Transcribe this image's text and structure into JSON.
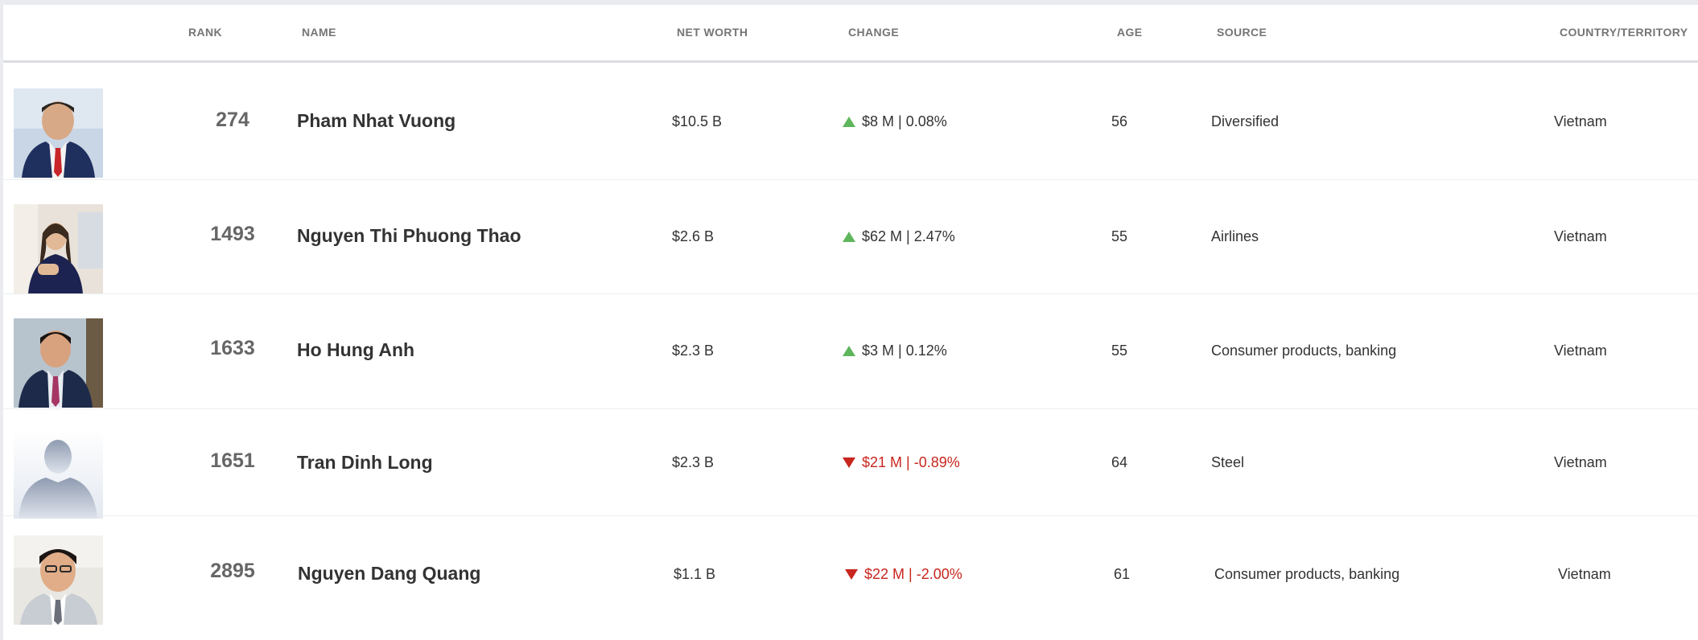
{
  "columns": {
    "rank": "RANK",
    "name": "NAME",
    "net_worth": "NET WORTH",
    "change": "CHANGE",
    "age": "AGE",
    "source": "SOURCE",
    "country": "COUNTRY/TERRITORY"
  },
  "rows": [
    {
      "rank": "274",
      "name": "Pham Nhat Vuong",
      "net_worth": "$10.5 B",
      "change": "$8 M | 0.08%",
      "direction": "up",
      "age": "56",
      "source": "Diversified",
      "country": "Vietnam"
    },
    {
      "rank": "1493",
      "name": "Nguyen Thi Phuong Thao",
      "net_worth": "$2.6 B",
      "change": "$62 M | 2.47%",
      "direction": "up",
      "age": "55",
      "source": "Airlines",
      "country": "Vietnam"
    },
    {
      "rank": "1633",
      "name": "Ho Hung Anh",
      "net_worth": "$2.3 B",
      "change": "$3 M | 0.12%",
      "direction": "up",
      "age": "55",
      "source": "Consumer products, banking",
      "country": "Vietnam"
    },
    {
      "rank": "1651",
      "name": "Tran Dinh Long",
      "net_worth": "$2.3 B",
      "change": "$21 M | -0.89%",
      "direction": "down",
      "age": "64",
      "source": "Steel",
      "country": "Vietnam"
    },
    {
      "rank": "2895",
      "name": "Nguyen Dang Quang",
      "net_worth": "$1.1 B",
      "change": "$22 M | -2.00%",
      "direction": "down",
      "age": "61",
      "source": "Consumer products, banking",
      "country": "Vietnam"
    }
  ],
  "colors": {
    "up": "#5fb55b",
    "down": "#c8261e"
  }
}
